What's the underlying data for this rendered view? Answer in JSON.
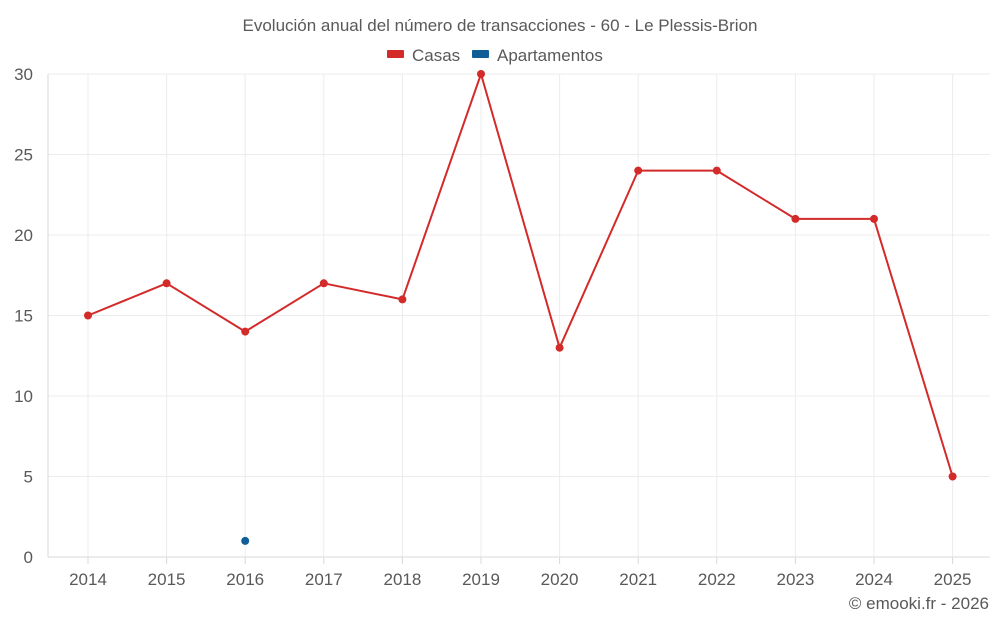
{
  "chart_data": {
    "type": "line",
    "title": "Evolución anual del número de transacciones - 60 - Le Plessis-Brion",
    "categories": [
      "2014",
      "2015",
      "2016",
      "2017",
      "2018",
      "2019",
      "2020",
      "2021",
      "2022",
      "2023",
      "2024",
      "2025"
    ],
    "series": [
      {
        "name": "Casas",
        "color": "#d32a2a",
        "values": [
          15,
          17,
          14,
          17,
          16,
          30,
          13,
          24,
          24,
          21,
          21,
          5
        ]
      },
      {
        "name": "Apartamentos",
        "color": "#0f5f96",
        "values": [
          null,
          null,
          1,
          null,
          null,
          null,
          null,
          null,
          null,
          null,
          null,
          null
        ]
      }
    ],
    "ylim": [
      0,
      30
    ],
    "yticks": [
      0,
      5,
      10,
      15,
      20,
      25,
      30
    ],
    "xlabel": "",
    "ylabel": "",
    "grid": true,
    "legend_position": "top-center"
  },
  "credit": "© emooki.fr - 2026"
}
